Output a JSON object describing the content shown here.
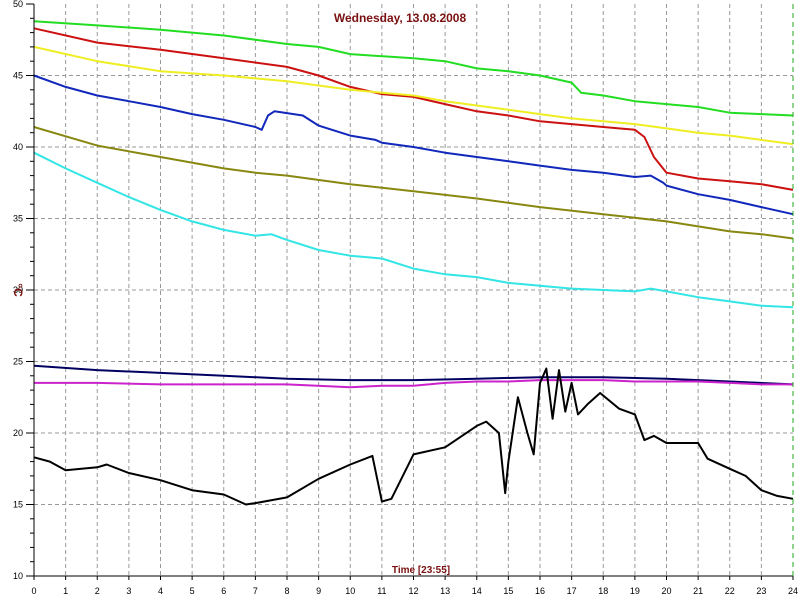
{
  "chart_data": {
    "type": "line",
    "title": "Wednesday, 13.08.2008",
    "xlabel": "Time [23:55]",
    "ylabel": "°C",
    "xlim": [
      0,
      24
    ],
    "ylim": [
      10,
      50
    ],
    "x_ticks": [
      "0",
      "1",
      "2",
      "3",
      "4",
      "5",
      "6",
      "7",
      "8",
      "9",
      "10",
      "11",
      "12",
      "13",
      "14",
      "15",
      "16",
      "17",
      "18",
      "19",
      "20",
      "21",
      "22",
      "23",
      "24"
    ],
    "y_ticks": [
      "10",
      "15",
      "20",
      "25",
      "30",
      "35",
      "40",
      "45",
      "50"
    ],
    "grid": true,
    "legend": "none",
    "series": [
      {
        "color": "#22dd22",
        "points": [
          [
            0,
            48.8
          ],
          [
            2,
            48.5
          ],
          [
            4,
            48.2
          ],
          [
            6,
            47.8
          ],
          [
            8,
            47.2
          ],
          [
            9,
            47
          ],
          [
            10,
            46.5
          ],
          [
            12,
            46.2
          ],
          [
            13,
            46
          ],
          [
            14,
            45.5
          ],
          [
            15,
            45.3
          ],
          [
            16,
            45
          ],
          [
            17,
            44.5
          ],
          [
            17.3,
            43.8
          ],
          [
            18,
            43.6
          ],
          [
            19,
            43.2
          ],
          [
            20,
            43
          ],
          [
            21,
            42.8
          ],
          [
            22,
            42.4
          ],
          [
            23,
            42.3
          ],
          [
            24,
            42.2
          ]
        ]
      },
      {
        "color": "#cc1111",
        "points": [
          [
            0,
            48.3
          ],
          [
            2,
            47.3
          ],
          [
            4,
            46.8
          ],
          [
            6,
            46.2
          ],
          [
            8,
            45.6
          ],
          [
            9,
            45
          ],
          [
            10,
            44.2
          ],
          [
            11,
            43.7
          ],
          [
            12,
            43.5
          ],
          [
            13,
            43
          ],
          [
            14,
            42.5
          ],
          [
            15,
            42.2
          ],
          [
            16,
            41.8
          ],
          [
            17,
            41.6
          ],
          [
            18,
            41.4
          ],
          [
            19,
            41.2
          ],
          [
            19.3,
            40.7
          ],
          [
            19.6,
            39.3
          ],
          [
            20,
            38.2
          ],
          [
            21,
            37.8
          ],
          [
            22,
            37.6
          ],
          [
            23,
            37.4
          ],
          [
            24,
            37
          ]
        ]
      },
      {
        "color": "#eeee22",
        "points": [
          [
            0,
            47
          ],
          [
            2,
            46
          ],
          [
            4,
            45.3
          ],
          [
            6,
            45
          ],
          [
            8,
            44.6
          ],
          [
            10,
            44
          ],
          [
            11,
            43.8
          ],
          [
            12,
            43.6
          ],
          [
            13,
            43.2
          ],
          [
            14,
            42.9
          ],
          [
            15,
            42.6
          ],
          [
            16,
            42.3
          ],
          [
            17,
            42
          ],
          [
            18,
            41.8
          ],
          [
            19,
            41.6
          ],
          [
            20,
            41.3
          ],
          [
            21,
            41
          ],
          [
            22,
            40.8
          ],
          [
            23,
            40.5
          ],
          [
            24,
            40.2
          ]
        ]
      },
      {
        "color": "#1128bb",
        "points": [
          [
            0,
            45
          ],
          [
            1,
            44.2
          ],
          [
            2,
            43.6
          ],
          [
            3,
            43.2
          ],
          [
            4,
            42.8
          ],
          [
            5,
            42.3
          ],
          [
            6,
            41.9
          ],
          [
            7,
            41.4
          ],
          [
            7.2,
            41.2
          ],
          [
            7.4,
            42.2
          ],
          [
            7.6,
            42.5
          ],
          [
            8.5,
            42.2
          ],
          [
            9,
            41.5
          ],
          [
            10,
            40.8
          ],
          [
            10.8,
            40.5
          ],
          [
            11,
            40.3
          ],
          [
            12,
            40
          ],
          [
            13,
            39.6
          ],
          [
            14,
            39.3
          ],
          [
            15,
            39
          ],
          [
            16,
            38.7
          ],
          [
            17,
            38.4
          ],
          [
            18,
            38.2
          ],
          [
            19,
            37.9
          ],
          [
            19.5,
            38
          ],
          [
            19.9,
            37.5
          ],
          [
            20,
            37.3
          ],
          [
            21,
            36.7
          ],
          [
            22,
            36.3
          ],
          [
            23,
            35.8
          ],
          [
            24,
            35.3
          ]
        ]
      },
      {
        "color": "#888811",
        "points": [
          [
            0,
            41.4
          ],
          [
            2,
            40.1
          ],
          [
            4,
            39.3
          ],
          [
            6,
            38.5
          ],
          [
            7,
            38.2
          ],
          [
            8,
            38
          ],
          [
            10,
            37.4
          ],
          [
            12,
            36.9
          ],
          [
            14,
            36.4
          ],
          [
            16,
            35.8
          ],
          [
            18,
            35.3
          ],
          [
            20,
            34.8
          ],
          [
            22,
            34.1
          ],
          [
            23,
            33.9
          ],
          [
            24,
            33.6
          ]
        ]
      },
      {
        "color": "#33e5e5",
        "points": [
          [
            0,
            39.6
          ],
          [
            1,
            38.5
          ],
          [
            2,
            37.5
          ],
          [
            3,
            36.5
          ],
          [
            4,
            35.6
          ],
          [
            5,
            34.8
          ],
          [
            6,
            34.2
          ],
          [
            7,
            33.8
          ],
          [
            7.5,
            33.9
          ],
          [
            8,
            33.5
          ],
          [
            9,
            32.8
          ],
          [
            10,
            32.4
          ],
          [
            11,
            32.2
          ],
          [
            12,
            31.5
          ],
          [
            13,
            31.1
          ],
          [
            14,
            30.9
          ],
          [
            15,
            30.5
          ],
          [
            16,
            30.3
          ],
          [
            17,
            30.1
          ],
          [
            18,
            30
          ],
          [
            19,
            29.9
          ],
          [
            19.5,
            30.1
          ],
          [
            20,
            29.9
          ],
          [
            21,
            29.5
          ],
          [
            22,
            29.2
          ],
          [
            23,
            28.9
          ],
          [
            24,
            28.8
          ]
        ]
      },
      {
        "color": "#000060",
        "points": [
          [
            0,
            24.7
          ],
          [
            2,
            24.4
          ],
          [
            4,
            24.2
          ],
          [
            6,
            24
          ],
          [
            8,
            23.8
          ],
          [
            10,
            23.7
          ],
          [
            12,
            23.7
          ],
          [
            14,
            23.8
          ],
          [
            16,
            23.9
          ],
          [
            18,
            23.9
          ],
          [
            20,
            23.8
          ],
          [
            22,
            23.6
          ],
          [
            24,
            23.4
          ]
        ]
      },
      {
        "color": "#cc22cc",
        "points": [
          [
            0,
            23.5
          ],
          [
            2,
            23.5
          ],
          [
            4,
            23.4
          ],
          [
            6,
            23.4
          ],
          [
            8,
            23.4
          ],
          [
            10,
            23.2
          ],
          [
            11,
            23.3
          ],
          [
            12,
            23.3
          ],
          [
            13,
            23.5
          ],
          [
            14,
            23.6
          ],
          [
            15,
            23.6
          ],
          [
            16,
            23.7
          ],
          [
            17,
            23.7
          ],
          [
            18,
            23.7
          ],
          [
            19,
            23.6
          ],
          [
            20,
            23.6
          ],
          [
            21,
            23.6
          ],
          [
            22,
            23.5
          ],
          [
            23,
            23.4
          ],
          [
            24,
            23.4
          ]
        ]
      },
      {
        "color": "#000000",
        "points": [
          [
            0,
            18.3
          ],
          [
            0.5,
            18
          ],
          [
            1,
            17.4
          ],
          [
            2,
            17.6
          ],
          [
            2.3,
            17.8
          ],
          [
            3,
            17.2
          ],
          [
            4,
            16.7
          ],
          [
            5,
            16
          ],
          [
            6,
            15.7
          ],
          [
            6.7,
            15
          ],
          [
            7,
            15.1
          ],
          [
            8,
            15.5
          ],
          [
            9,
            16.8
          ],
          [
            10,
            17.8
          ],
          [
            10.7,
            18.4
          ],
          [
            11,
            15.2
          ],
          [
            11.3,
            15.4
          ],
          [
            12,
            18.5
          ],
          [
            13,
            19
          ],
          [
            14,
            20.5
          ],
          [
            14.3,
            20.8
          ],
          [
            14.7,
            20
          ],
          [
            14.9,
            15.8
          ],
          [
            15,
            18
          ],
          [
            15.3,
            22.5
          ],
          [
            15.6,
            20
          ],
          [
            15.8,
            18.5
          ],
          [
            16,
            23.5
          ],
          [
            16.2,
            24.5
          ],
          [
            16.4,
            21
          ],
          [
            16.6,
            24.4
          ],
          [
            16.8,
            21.5
          ],
          [
            17,
            23.5
          ],
          [
            17.2,
            21.3
          ],
          [
            17.5,
            22
          ],
          [
            17.9,
            22.8
          ],
          [
            18.5,
            21.7
          ],
          [
            19,
            21.3
          ],
          [
            19.3,
            19.5
          ],
          [
            19.6,
            19.8
          ],
          [
            20,
            19.3
          ],
          [
            21,
            19.3
          ],
          [
            21.3,
            18.2
          ],
          [
            22,
            17.5
          ],
          [
            22.5,
            17
          ],
          [
            23,
            16
          ],
          [
            23.5,
            15.6
          ],
          [
            24,
            15.4
          ]
        ]
      }
    ]
  }
}
